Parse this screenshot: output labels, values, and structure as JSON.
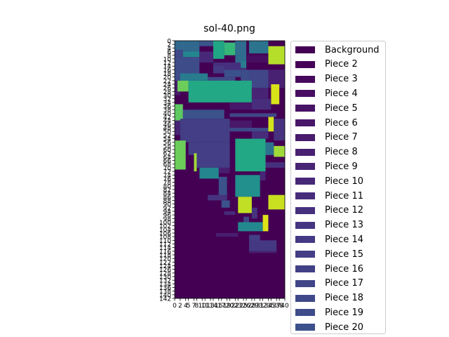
{
  "chart_data": {
    "type": "heatmap",
    "title": "sol-40.png",
    "xlabel": "",
    "ylabel": "",
    "xlim": [
      0,
      40
    ],
    "ylim": [
      142,
      0
    ],
    "y_ticks": [
      0,
      2,
      4,
      6,
      8,
      10,
      12,
      14,
      16,
      18,
      20,
      22,
      24,
      26,
      28,
      30,
      32,
      34,
      36,
      38,
      40,
      42,
      44,
      46,
      48,
      50,
      52,
      54,
      56,
      58,
      60,
      62,
      64,
      66,
      68,
      70,
      72,
      74,
      76,
      78,
      80,
      82,
      84,
      86,
      88,
      90,
      92,
      94,
      96,
      98,
      100,
      102,
      104,
      106,
      108,
      110,
      112,
      114,
      116,
      118,
      120,
      122,
      124,
      126,
      128,
      130,
      132,
      134,
      136,
      138,
      140,
      142
    ],
    "y_tick_labels": [
      "0",
      "2",
      "4",
      "6",
      "8",
      "10",
      "12",
      "14",
      "16",
      "18",
      "20",
      "22",
      "24",
      "26",
      "28",
      "30",
      "32",
      "34",
      "36",
      "38",
      "40",
      "42",
      "44",
      "46",
      "48",
      "50",
      "52",
      "54",
      "56",
      "58",
      "60",
      "62",
      "64",
      "66",
      "68",
      "70",
      "72",
      "74",
      "76",
      "78",
      "80",
      "82",
      "84",
      "86",
      "88",
      "90",
      "92",
      "94",
      "96",
      "98",
      "100",
      "102",
      "104",
      "106",
      "108",
      "110",
      "112",
      "114",
      "116",
      "118",
      "120",
      "122",
      "124",
      "126",
      "128",
      "130",
      "132",
      "134",
      "136",
      "138",
      "140",
      "142"
    ],
    "x_ticks": [
      0,
      2,
      4,
      5,
      7,
      8,
      10,
      11,
      13,
      14,
      16,
      17,
      19,
      20,
      22,
      23,
      25,
      26,
      28,
      29,
      31,
      32,
      34,
      35,
      37,
      38,
      40
    ],
    "x_tick_labels": [
      "0",
      "2",
      "4",
      "5",
      "7",
      "8",
      "10",
      "11",
      "13",
      "14",
      "16",
      "17",
      "19",
      "20",
      "22",
      "23",
      "25",
      "26",
      "28",
      "29",
      "31",
      "32",
      "34",
      "35",
      "37",
      "38",
      "40"
    ],
    "colormap": "viridis",
    "background_color": "#440154",
    "regions": [
      {
        "x0": 0,
        "x1": 9,
        "y0": 0,
        "y1": 6,
        "color": "#31688e"
      },
      {
        "x0": 9,
        "x1": 14,
        "y0": 0,
        "y1": 3,
        "color": "#3a548c"
      },
      {
        "x0": 14,
        "x1": 18,
        "y0": 0,
        "y1": 10,
        "color": "#21a685"
      },
      {
        "x0": 18,
        "x1": 22,
        "y0": 1,
        "y1": 8,
        "color": "#35b779"
      },
      {
        "x0": 22,
        "x1": 26,
        "y0": 0,
        "y1": 12,
        "color": "#2f6c8e"
      },
      {
        "x0": 27,
        "x1": 34,
        "y0": 0,
        "y1": 7,
        "color": "#2c738e"
      },
      {
        "x0": 34,
        "x1": 40,
        "y0": 3,
        "y1": 13,
        "color": "#b5de2b"
      },
      {
        "x0": 0,
        "x1": 3,
        "y0": 5,
        "y1": 9,
        "color": "#3f4889"
      },
      {
        "x0": 0,
        "x1": 9,
        "y0": 9,
        "y1": 22,
        "color": "#3e4c8a"
      },
      {
        "x0": 3,
        "x1": 9,
        "y0": 6,
        "y1": 9,
        "color": "#24868e"
      },
      {
        "x0": 9,
        "x1": 14,
        "y0": 6,
        "y1": 12,
        "color": "#482878"
      },
      {
        "x0": 26,
        "x1": 34,
        "y0": 8,
        "y1": 12,
        "color": "#470e61"
      },
      {
        "x0": 14,
        "x1": 26,
        "y0": 12,
        "y1": 16,
        "color": "#46307e"
      },
      {
        "x0": 24,
        "x1": 26,
        "y0": 11,
        "y1": 15,
        "color": "#287c8e"
      },
      {
        "x0": 14,
        "x1": 18,
        "y0": 14,
        "y1": 18,
        "color": "#443a83"
      },
      {
        "x0": 18,
        "x1": 24,
        "y0": 16,
        "y1": 20,
        "color": "#3b518b"
      },
      {
        "x0": 2,
        "x1": 12,
        "y0": 18,
        "y1": 22,
        "color": "#287c8e"
      },
      {
        "x0": 12,
        "x1": 22,
        "y0": 20,
        "y1": 23,
        "color": "#3e4a89"
      },
      {
        "x0": 24,
        "x1": 27,
        "y0": 16,
        "y1": 25,
        "color": "#3d4d8a"
      },
      {
        "x0": 27,
        "x1": 34,
        "y0": 16,
        "y1": 26,
        "color": "#404688"
      },
      {
        "x0": 34,
        "x1": 40,
        "y0": 16,
        "y1": 26,
        "color": "#482173"
      },
      {
        "x0": 0,
        "x1": 2,
        "y0": 22,
        "y1": 30,
        "color": "#481a6c"
      },
      {
        "x0": 1,
        "x1": 5,
        "y0": 22,
        "y1": 28,
        "color": "#6ccd5a"
      },
      {
        "x0": 5,
        "x1": 28,
        "y0": 22,
        "y1": 34,
        "color": "#22a884"
      },
      {
        "x0": 28,
        "x1": 34,
        "y0": 26,
        "y1": 32,
        "color": "#482475"
      },
      {
        "x0": 35,
        "x1": 38,
        "y0": 24,
        "y1": 35,
        "color": "#d8e219"
      },
      {
        "x0": 28,
        "x1": 35,
        "y0": 32,
        "y1": 38,
        "color": "#472d7b"
      },
      {
        "x0": 20,
        "x1": 28,
        "y0": 34,
        "y1": 38,
        "color": "#481769"
      },
      {
        "x0": 0,
        "x1": 3,
        "y0": 35,
        "y1": 44,
        "color": "#5ec962"
      },
      {
        "x0": 3,
        "x1": 18,
        "y0": 38,
        "y1": 43,
        "color": "#3b528b"
      },
      {
        "x0": 20,
        "x1": 37,
        "y0": 40,
        "y1": 42,
        "color": "#404688"
      },
      {
        "x0": 0,
        "x1": 2,
        "y0": 44,
        "y1": 52,
        "color": "#482475"
      },
      {
        "x0": 2,
        "x1": 20,
        "y0": 43,
        "y1": 56,
        "color": "#433e85"
      },
      {
        "x0": 20,
        "x1": 28,
        "y0": 44,
        "y1": 50,
        "color": "#48186a"
      },
      {
        "x0": 20,
        "x1": 35,
        "y0": 48,
        "y1": 50,
        "color": "#3e4989"
      },
      {
        "x0": 34,
        "x1": 36,
        "y0": 42,
        "y1": 50,
        "color": "#d2e21b"
      },
      {
        "x0": 36,
        "x1": 40,
        "y0": 43,
        "y1": 55,
        "color": "#46327e"
      },
      {
        "x0": 28,
        "x1": 34,
        "y0": 50,
        "y1": 54,
        "color": "#472c7a"
      },
      {
        "x0": 0,
        "x1": 4,
        "y0": 55,
        "y1": 71,
        "color": "#6ccd5a"
      },
      {
        "x0": 5,
        "x1": 10,
        "y0": 56,
        "y1": 63,
        "color": "#433e85"
      },
      {
        "x0": 8,
        "x1": 20,
        "y0": 56,
        "y1": 70,
        "color": "#433e85"
      },
      {
        "x0": 22,
        "x1": 33,
        "y0": 54,
        "y1": 72,
        "color": "#22a884"
      },
      {
        "x0": 33,
        "x1": 36,
        "y0": 56,
        "y1": 63,
        "color": "#2c718e"
      },
      {
        "x0": 36,
        "x1": 40,
        "y0": 58,
        "y1": 64,
        "color": "#a0da39"
      },
      {
        "x0": 33,
        "x1": 40,
        "y0": 67,
        "y1": 70,
        "color": "#46307e"
      },
      {
        "x0": 7,
        "x1": 8,
        "y0": 62,
        "y1": 72,
        "color": "#9fda3a"
      },
      {
        "x0": 9,
        "x1": 16,
        "y0": 70,
        "y1": 76,
        "color": "#24868e"
      },
      {
        "x0": 16,
        "x1": 20,
        "y0": 70,
        "y1": 73,
        "color": "#481f70"
      },
      {
        "x0": 16,
        "x1": 19,
        "y0": 75,
        "y1": 87,
        "color": "#3b528b"
      },
      {
        "x0": 22,
        "x1": 31,
        "y0": 74,
        "y1": 86,
        "color": "#22908c"
      },
      {
        "x0": 31,
        "x1": 33,
        "y0": 72,
        "y1": 77,
        "color": "#482576"
      },
      {
        "x0": 12,
        "x1": 19,
        "y0": 85,
        "y1": 88,
        "color": "#46337f"
      },
      {
        "x0": 17,
        "x1": 20,
        "y0": 88,
        "y1": 92,
        "color": "#3b528b"
      },
      {
        "x0": 23,
        "x1": 28,
        "y0": 86,
        "y1": 95,
        "color": "#c0df25"
      },
      {
        "x0": 34,
        "x1": 40,
        "y0": 85,
        "y1": 93,
        "color": "#c8e020"
      },
      {
        "x0": 18,
        "x1": 22,
        "y0": 94,
        "y1": 96,
        "color": "#472a7a"
      },
      {
        "x0": 25,
        "x1": 27,
        "y0": 97,
        "y1": 100,
        "color": "#414487"
      },
      {
        "x0": 23,
        "x1": 32,
        "y0": 100,
        "y1": 105,
        "color": "#23898e"
      },
      {
        "x0": 28,
        "x1": 30,
        "y0": 92,
        "y1": 98,
        "color": "#46337f"
      },
      {
        "x0": 32,
        "x1": 34,
        "y0": 96,
        "y1": 105,
        "color": "#dde318"
      },
      {
        "x0": 15,
        "x1": 23,
        "y0": 106,
        "y1": 108,
        "color": "#481f70"
      },
      {
        "x0": 27,
        "x1": 31,
        "y0": 107,
        "y1": 111,
        "color": "#433e85"
      },
      {
        "x0": 27,
        "x1": 37,
        "y0": 110,
        "y1": 116,
        "color": "#453882"
      },
      {
        "x0": 27,
        "x1": 37,
        "y0": 116,
        "y1": 117,
        "color": "#481f70"
      }
    ],
    "legend_placement": "outside-right",
    "legend": [
      {
        "label": "Background",
        "color": "#440154"
      },
      {
        "label": "Piece 2",
        "color": "#450457"
      },
      {
        "label": "Piece 3",
        "color": "#46085c"
      },
      {
        "label": "Piece 4",
        "color": "#470d60"
      },
      {
        "label": "Piece 5",
        "color": "#471365"
      },
      {
        "label": "Piece 6",
        "color": "#481769"
      },
      {
        "label": "Piece 7",
        "color": "#481b6d"
      },
      {
        "label": "Piece 8",
        "color": "#482071"
      },
      {
        "label": "Piece 9",
        "color": "#482475"
      },
      {
        "label": "Piece 10",
        "color": "#472878"
      },
      {
        "label": "Piece 11",
        "color": "#472c7a"
      },
      {
        "label": "Piece 12",
        "color": "#46307e"
      },
      {
        "label": "Piece 13",
        "color": "#453581"
      },
      {
        "label": "Piece 14",
        "color": "#443983"
      },
      {
        "label": "Piece 15",
        "color": "#433e85"
      },
      {
        "label": "Piece 16",
        "color": "#424086"
      },
      {
        "label": "Piece 17",
        "color": "#404588"
      },
      {
        "label": "Piece 18",
        "color": "#3f4889"
      },
      {
        "label": "Piece 19",
        "color": "#3e4c8a"
      },
      {
        "label": "Piece 20",
        "color": "#3c508b"
      }
    ]
  }
}
